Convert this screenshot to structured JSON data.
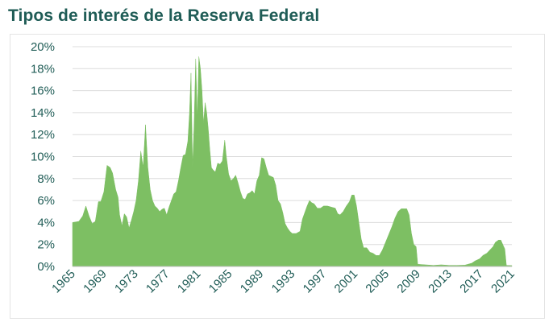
{
  "chart_data": {
    "type": "area",
    "title": "Tipos de interés de la Reserva Federal",
    "xlabel": "",
    "ylabel": "",
    "ylim": [
      0,
      20
    ],
    "xlim": [
      1965,
      2021
    ],
    "yticks": [
      "0%",
      "2%",
      "4%",
      "6%",
      "8%",
      "10%",
      "12%",
      "14%",
      "16%",
      "18%",
      "20%"
    ],
    "xticks": [
      "1965",
      "1969",
      "1973",
      "1977",
      "1981",
      "1985",
      "1989",
      "1993",
      "1997",
      "2001",
      "2005",
      "2009",
      "2013",
      "2017",
      "2021"
    ],
    "grid": true,
    "legend": "none",
    "color": "#7dbf63",
    "x": [
      1965.0,
      1965.8,
      1966.3,
      1966.7,
      1967.1,
      1967.5,
      1967.9,
      1968.3,
      1968.6,
      1969.0,
      1969.4,
      1969.8,
      1970.1,
      1970.5,
      1970.8,
      1971.0,
      1971.3,
      1971.6,
      1971.9,
      1972.2,
      1972.5,
      1972.8,
      1973.1,
      1973.4,
      1973.7,
      1974.0,
      1974.3,
      1974.6,
      1974.9,
      1975.2,
      1975.5,
      1975.8,
      1976.1,
      1976.4,
      1976.7,
      1977.0,
      1977.3,
      1977.6,
      1977.9,
      1978.2,
      1978.5,
      1978.8,
      1979.1,
      1979.4,
      1979.7,
      1979.9,
      1980.1,
      1980.3,
      1980.5,
      1980.7,
      1980.9,
      1981.1,
      1981.3,
      1981.5,
      1981.7,
      1981.9,
      1982.1,
      1982.3,
      1982.5,
      1982.7,
      1982.9,
      1983.2,
      1983.5,
      1983.8,
      1984.1,
      1984.4,
      1984.6,
      1984.9,
      1985.2,
      1985.5,
      1985.8,
      1986.1,
      1986.4,
      1986.7,
      1987.0,
      1987.3,
      1987.6,
      1987.9,
      1988.2,
      1988.5,
      1988.8,
      1989.1,
      1989.4,
      1989.7,
      1990.0,
      1990.3,
      1990.6,
      1990.9,
      1991.2,
      1991.5,
      1991.8,
      1992.1,
      1992.4,
      1992.7,
      1993.0,
      1993.5,
      1994.0,
      1994.3,
      1994.6,
      1994.9,
      1995.2,
      1995.5,
      1995.8,
      1996.2,
      1996.6,
      1997.0,
      1997.5,
      1998.0,
      1998.5,
      1998.8,
      1999.1,
      1999.5,
      1999.9,
      2000.3,
      2000.6,
      2000.9,
      2001.2,
      2001.5,
      2001.8,
      2002.1,
      2002.5,
      2002.9,
      2003.3,
      2003.7,
      2004.1,
      2004.5,
      2004.9,
      2005.3,
      2005.7,
      2006.1,
      2006.5,
      2006.9,
      2007.3,
      2007.6,
      2007.9,
      2008.2,
      2008.5,
      2008.8,
      2009.0,
      2010.0,
      2011.0,
      2012.0,
      2013.0,
      2014.0,
      2015.0,
      2015.9,
      2016.3,
      2016.9,
      2017.3,
      2017.8,
      2018.2,
      2018.6,
      2018.9,
      2019.3,
      2019.6,
      2019.9,
      2020.1,
      2020.3,
      2021.0
    ],
    "values": [
      4.0,
      4.1,
      4.6,
      5.5,
      4.6,
      3.9,
      4.1,
      5.9,
      5.9,
      6.8,
      9.2,
      9.0,
      8.5,
      7.0,
      6.3,
      4.7,
      3.7,
      4.8,
      4.5,
      3.5,
      4.2,
      5.0,
      6.0,
      7.8,
      10.5,
      9.0,
      12.9,
      9.0,
      7.0,
      6.0,
      5.5,
      5.3,
      5.0,
      5.2,
      5.3,
      4.7,
      5.4,
      6.0,
      6.6,
      6.8,
      7.8,
      9.0,
      10.1,
      10.2,
      11.4,
      13.8,
      17.6,
      9.0,
      13.0,
      18.9,
      13.5,
      19.1,
      18.0,
      16.0,
      13.0,
      14.9,
      14.0,
      12.5,
      10.6,
      9.0,
      8.8,
      8.6,
      9.4,
      9.3,
      9.6,
      11.5,
      10.0,
      8.4,
      7.8,
      8.0,
      8.3,
      7.6,
      6.8,
      6.2,
      6.1,
      6.6,
      6.7,
      6.9,
      6.6,
      7.8,
      8.3,
      9.9,
      9.8,
      9.0,
      8.3,
      8.2,
      8.1,
      7.4,
      6.0,
      5.7,
      4.9,
      3.9,
      3.5,
      3.2,
      3.0,
      3.0,
      3.2,
      4.3,
      4.9,
      5.5,
      6.0,
      5.8,
      5.7,
      5.3,
      5.3,
      5.5,
      5.5,
      5.4,
      5.3,
      4.8,
      4.7,
      5.0,
      5.5,
      5.9,
      6.5,
      6.5,
      5.5,
      4.0,
      2.5,
      1.7,
      1.7,
      1.3,
      1.2,
      1.0,
      1.0,
      1.5,
      2.2,
      2.9,
      3.6,
      4.4,
      5.0,
      5.25,
      5.25,
      5.25,
      4.7,
      3.0,
      2.0,
      1.8,
      0.2,
      0.15,
      0.1,
      0.15,
      0.1,
      0.1,
      0.12,
      0.3,
      0.5,
      0.7,
      1.0,
      1.2,
      1.5,
      1.8,
      2.2,
      2.4,
      2.4,
      1.9,
      1.6,
      0.1,
      0.08
    ]
  }
}
